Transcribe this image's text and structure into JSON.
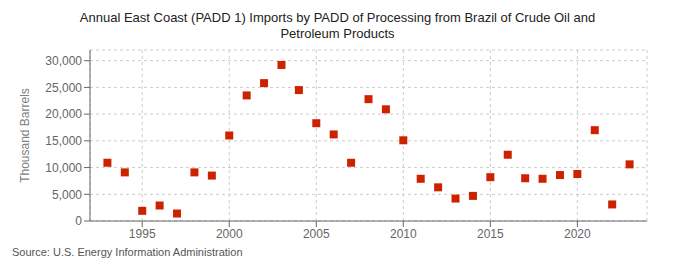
{
  "chart_data": {
    "type": "scatter",
    "title": "Annual East Coast (PADD 1) Imports by PADD of Processing from Brazil of Crude Oil and\nPetroleum Products",
    "y_label": "Thousand Barrels",
    "annotations": [
      "Source: U.S. Energy Information Administration"
    ],
    "x": [
      1993,
      1994,
      1995,
      1996,
      1997,
      1998,
      1999,
      2000,
      2001,
      2002,
      2003,
      2004,
      2005,
      2006,
      2007,
      2008,
      2009,
      2010,
      2011,
      2012,
      2013,
      2014,
      2015,
      2016,
      2017,
      2018,
      2019,
      2020,
      2021,
      2022,
      2023
    ],
    "values": [
      10900,
      9100,
      1900,
      2900,
      1400,
      9100,
      8500,
      16000,
      23500,
      25800,
      29200,
      24500,
      18300,
      16200,
      10900,
      22800,
      20900,
      15100,
      7900,
      6300,
      4200,
      4700,
      8200,
      12400,
      8000,
      7900,
      8600,
      8800,
      17000,
      3100,
      10600
    ],
    "color": "#cc2200",
    "marker": "square",
    "xlim": [
      1992,
      2024
    ],
    "xticks": [
      1995,
      2000,
      2005,
      2010,
      2015,
      2020
    ],
    "ylim": [
      0,
      32000
    ],
    "yticks": [
      0,
      {
        "value": 5000,
        "label": "5,000"
      },
      {
        "value": 10000,
        "label": "10,000"
      },
      {
        "value": 15000,
        "label": "15,000"
      },
      {
        "value": 20000,
        "label": "20,000"
      },
      {
        "value": 25000,
        "label": "25,000"
      },
      {
        "value": 30000,
        "label": "30,000"
      }
    ],
    "grid": true
  }
}
